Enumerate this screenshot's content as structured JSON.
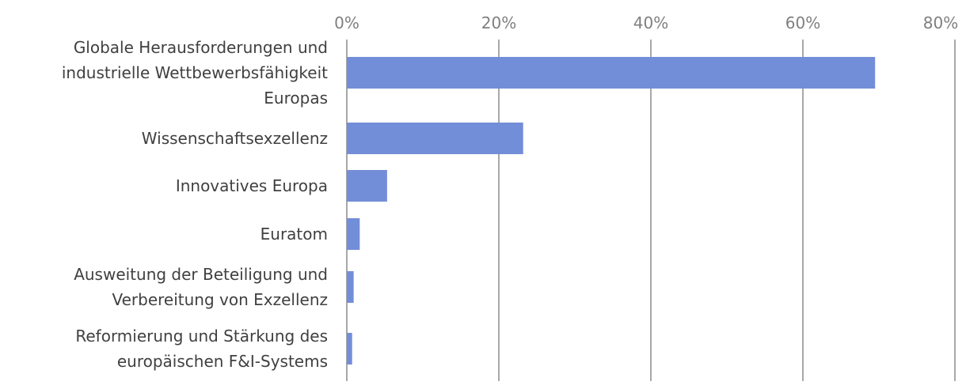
{
  "chart_data": {
    "type": "bar",
    "orientation": "horizontal",
    "categories": [
      [
        "Globale Herausforderungen und",
        "industrielle Wettbewerbsfähigkeit",
        "Europas"
      ],
      [
        "Wissenschaftsexzellenz"
      ],
      [
        "Innovatives Europa"
      ],
      [
        "Euratom"
      ],
      [
        "Ausweitung der Beteiligung und",
        "Verbereitung von Exzellenz"
      ],
      [
        "Reformierung und Stärkung des",
        "europäischen F&I-Systems"
      ]
    ],
    "values": [
      69.5,
      23.2,
      5.3,
      1.7,
      0.9,
      0.7
    ],
    "xlim": [
      0,
      80
    ],
    "ticks": [
      0,
      20,
      40,
      60,
      80
    ],
    "tick_labels": [
      "0%",
      "20%",
      "40%",
      "60%",
      "80%"
    ],
    "title": "",
    "xlabel": "",
    "ylabel": "",
    "grid": true,
    "legend": "none",
    "colors": {
      "bar": "#738ed8",
      "grid": "#8c8c8c",
      "tick_text": "#7f7f7f",
      "label_text": "#404040"
    }
  }
}
